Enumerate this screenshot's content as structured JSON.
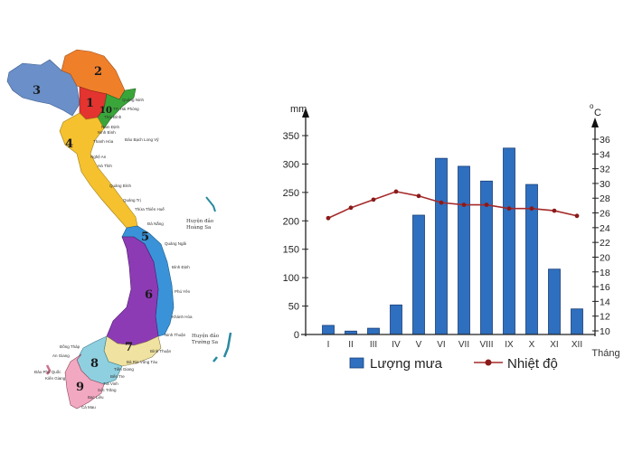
{
  "map": {
    "regions": [
      {
        "id": "1",
        "color": "#e3342f"
      },
      {
        "id": "2",
        "color": "#f07f2a"
      },
      {
        "id": "3",
        "color": "#6a8fc9"
      },
      {
        "id": "4",
        "color": "#f5c12e"
      },
      {
        "id": "5",
        "color": "#3a93d8"
      },
      {
        "id": "6",
        "color": "#8d3bb5"
      },
      {
        "id": "7",
        "color": "#f0e2a0"
      },
      {
        "id": "8",
        "color": "#8fd0e0"
      },
      {
        "id": "9",
        "color": "#f2a8c0"
      },
      {
        "id": "10",
        "color": "#3aa63a"
      }
    ],
    "labels": {
      "quang_ninh": "Quảng Ninh",
      "hai_phong": "TP. Hải Phòng",
      "thai_binh": "Thái Bình",
      "nam_dinh": "Nam Định",
      "ninh_binh": "Ninh Bình",
      "bach_long_vy": "Đảo Bạch Long Vỹ",
      "thanh_hoa": "Thanh Hóa",
      "nghe_an": "Nghệ An",
      "ha_tinh": "Hà Tĩnh",
      "quang_binh": "Quảng Bình",
      "quang_tri": "Quảng Trị",
      "thua_thien_hue": "Thừa Thiên Huế",
      "da_nang": "Đà Nẵng",
      "quang_ngai": "Quảng Ngãi",
      "binh_dinh": "Bình Định",
      "phu_yen": "Phú Yên",
      "khanh_hoa": "Khánh Hòa",
      "ninh_thuan": "Ninh Thuận",
      "binh_thuan": "Bình Thuận",
      "dong_thap": "Đồng Tháp",
      "an_giang": "An Giang",
      "phu_quoc": "Đảo Phú Quốc",
      "kien_giang": "Kiên Giang",
      "tien_giang": "Tiền Giang",
      "ben_tre": "Bến Tre",
      "tra_vinh": "Trà Vinh",
      "soc_trang": "Sóc Trăng",
      "bac_lieu": "Bạc Liêu",
      "ca_mau": "Cà Mau",
      "ba_ria": "Bà Rịa Vũng Tàu",
      "hoang_sa_1": "Huyện đảo",
      "hoang_sa_2": "Hoàng Sa",
      "truong_sa_1": "Huyện đảo",
      "truong_sa_2": "Trường Sa"
    }
  },
  "chart_data": {
    "type": "bar+line",
    "title": "",
    "categories": [
      "I",
      "II",
      "III",
      "IV",
      "V",
      "VI",
      "VII",
      "VIII",
      "IX",
      "X",
      "XI",
      "XII"
    ],
    "series": [
      {
        "name": "Lượng mưa",
        "type": "bar",
        "axis": "left",
        "color": "#2f6fbf",
        "values": [
          16,
          6,
          11,
          52,
          210,
          310,
          296,
          270,
          328,
          264,
          115,
          45
        ]
      },
      {
        "name": "Nhiệt độ",
        "type": "line",
        "axis": "right",
        "color": "#a52a2a",
        "values": [
          25.3,
          26.7,
          27.8,
          28.9,
          28.3,
          27.4,
          27.1,
          27.1,
          26.6,
          26.6,
          26.3,
          25.6
        ]
      }
    ],
    "xlabel": "Tháng",
    "ylabel_left": "mm",
    "ylabel_right": "°C",
    "ylim_left": [
      0,
      350
    ],
    "yticks_left": [
      0,
      50,
      100,
      150,
      200,
      250,
      300,
      350
    ],
    "ylim_right": [
      10,
      36
    ],
    "yticks_right": [
      10,
      12,
      14,
      16,
      18,
      20,
      22,
      24,
      26,
      28,
      30,
      32,
      34,
      36
    ],
    "grid": false,
    "legend": {
      "position": "bottom",
      "entries": [
        "Lượng mưa",
        "Nhiệt độ"
      ]
    }
  }
}
